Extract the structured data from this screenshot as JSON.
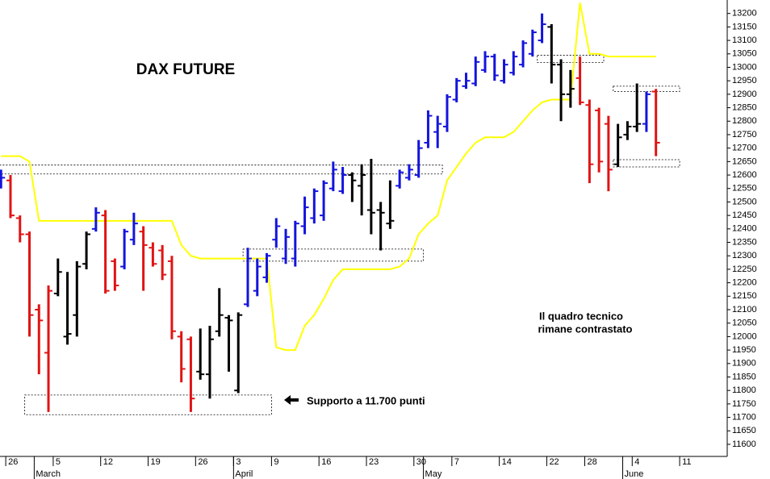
{
  "chart_data": {
    "type": "ohlc",
    "title": "DAX FUTURE",
    "annotations": [
      {
        "lines": [
          "Il quadro tecnico",
          "rimane contrastato"
        ]
      },
      {
        "lines": [
          "Supporto a 11.700 punti"
        ]
      }
    ],
    "categories": [
      null,
      "26",
      null,
      null,
      null,
      null,
      "5",
      null,
      null,
      null,
      null,
      "12",
      null,
      null,
      null,
      null,
      "19",
      null,
      null,
      null,
      null,
      "26",
      null,
      null,
      null,
      "3",
      null,
      null,
      null,
      "9",
      null,
      null,
      null,
      null,
      "16",
      null,
      null,
      null,
      null,
      "23",
      null,
      null,
      null,
      null,
      "30",
      null,
      null,
      null,
      "7",
      null,
      null,
      null,
      null,
      "14",
      null,
      null,
      null,
      null,
      "22",
      null,
      null,
      null,
      "28",
      null,
      null,
      null,
      null,
      "4",
      null,
      null,
      null,
      null,
      "11",
      null,
      null,
      null
    ],
    "months": [
      {
        "label": "March",
        "index": 4
      },
      {
        "label": "April",
        "index": 25
      },
      {
        "label": "May",
        "index": 45
      },
      {
        "label": "June",
        "index": 66
      }
    ],
    "open": [
      12560,
      12580,
      12440,
      12380,
      12100,
      11940,
      12160,
      12000,
      12080,
      12270,
      12400,
      12450,
      12280,
      12260,
      12360,
      12390,
      12330,
      12320,
      12280,
      12000,
      11990,
      11870,
      11860,
      12020,
      12070,
      11800,
      12120,
      12170,
      12220,
      12360,
      12290,
      12290,
      12410,
      12440,
      12450,
      12550,
      12540,
      12600,
      12560,
      12470,
      12470,
      12420,
      12560,
      12590,
      12600,
      12720,
      12760,
      12780,
      12880,
      12930,
      12940,
      12990,
      13040,
      12950,
      12980,
      13010,
      13050,
      13100,
      13150,
      13010,
      12900,
      12960,
      12860,
      12840,
      12790,
      12640,
      12750,
      12780,
      12790,
      12910,
      null,
      null,
      null,
      null,
      null,
      null
    ],
    "high": [
      12620,
      12600,
      12450,
      12390,
      12120,
      12190,
      12290,
      12240,
      12280,
      12390,
      12480,
      12470,
      12290,
      12400,
      12460,
      12410,
      12350,
      12340,
      12300,
      12020,
      12000,
      12030,
      12040,
      12180,
      12080,
      12090,
      12330,
      12290,
      12310,
      12440,
      12400,
      12430,
      12520,
      12550,
      12580,
      12650,
      12630,
      12610,
      12640,
      12660,
      12500,
      12580,
      12620,
      12640,
      12730,
      12840,
      12820,
      12900,
      12960,
      12980,
      13040,
      13060,
      13050,
      13030,
      13060,
      13100,
      13140,
      13200,
      13160,
      13030,
      12990,
      13040,
      12880,
      12850,
      12820,
      12790,
      12800,
      12940,
      12910,
      12920,
      null,
      null,
      null,
      null,
      null,
      null
    ],
    "low": [
      12550,
      12440,
      12350,
      12000,
      11860,
      11720,
      12150,
      11970,
      12000,
      12250,
      12390,
      12160,
      12170,
      12250,
      12340,
      12170,
      12260,
      12210,
      11990,
      11830,
      11720,
      11840,
      11770,
      12000,
      11870,
      11790,
      12110,
      12150,
      12200,
      12330,
      12270,
      12260,
      12380,
      12420,
      12430,
      12540,
      12530,
      12500,
      12450,
      12380,
      12320,
      12400,
      12550,
      12580,
      12590,
      12700,
      12700,
      12760,
      12870,
      12920,
      12930,
      12980,
      12950,
      12940,
      12970,
      13000,
      13040,
      13090,
      12940,
      12800,
      12850,
      12860,
      12570,
      12610,
      12540,
      12630,
      12730,
      12760,
      12760,
      12670,
      null,
      null,
      null,
      null,
      null,
      null
    ],
    "close": [
      12590,
      12450,
      12380,
      12080,
      12060,
      12170,
      12240,
      12010,
      12260,
      12380,
      12460,
      12170,
      12190,
      12390,
      12420,
      12340,
      12270,
      12230,
      12020,
      11880,
      11770,
      11860,
      11990,
      12080,
      12060,
      12080,
      12290,
      12260,
      12300,
      12410,
      12370,
      12420,
      12480,
      12540,
      12570,
      12620,
      12600,
      12580,
      12600,
      12460,
      12460,
      12430,
      12610,
      12620,
      12700,
      12820,
      12790,
      12890,
      12950,
      12950,
      13020,
      13040,
      12970,
      13010,
      13040,
      13090,
      13130,
      13160,
      13010,
      12900,
      12920,
      12870,
      12640,
      12650,
      12620,
      12740,
      12780,
      12790,
      12900,
      12720,
      null,
      null,
      null,
      null,
      null,
      null
    ],
    "bar_colors": [
      "#1414dc",
      "#e01414",
      "#e01414",
      "#e01414",
      "#e01414",
      "#e01414",
      "#000000",
      "#000000",
      "#000000",
      "#000000",
      "#1414dc",
      "#e01414",
      "#e01414",
      "#1414dc",
      "#1414dc",
      "#e01414",
      "#e01414",
      "#e01414",
      "#e01414",
      "#e01414",
      "#e01414",
      "#000000",
      "#000000",
      "#000000",
      "#000000",
      "#000000",
      "#1414dc",
      "#1414dc",
      "#1414dc",
      "#1414dc",
      "#1414dc",
      "#1414dc",
      "#1414dc",
      "#1414dc",
      "#1414dc",
      "#1414dc",
      "#1414dc",
      "#000000",
      "#000000",
      "#000000",
      "#000000",
      "#000000",
      "#1414dc",
      "#1414dc",
      "#1414dc",
      "#1414dc",
      "#1414dc",
      "#1414dc",
      "#1414dc",
      "#1414dc",
      "#1414dc",
      "#1414dc",
      "#1414dc",
      "#1414dc",
      "#1414dc",
      "#1414dc",
      "#1414dc",
      "#1414dc",
      "#000000",
      "#000000",
      "#000000",
      "#e01414",
      "#e01414",
      "#e01414",
      "#e01414",
      "#000000",
      "#000000",
      "#000000",
      "#1414dc",
      "#e01414",
      null,
      null,
      null,
      null,
      null,
      null
    ],
    "line": {
      "color": "#ffff00",
      "values": [
        12670,
        12670,
        12670,
        12650,
        12430,
        12430,
        12430,
        12430,
        12430,
        12430,
        12430,
        12430,
        12430,
        12430,
        12430,
        12430,
        12430,
        12430,
        12430,
        12340,
        12300,
        12290,
        12290,
        12290,
        12290,
        12290,
        12290,
        12290,
        12290,
        11960,
        11950,
        11950,
        12040,
        12080,
        12140,
        12210,
        12250,
        12250,
        12250,
        12250,
        12250,
        12250,
        12260,
        12290,
        12380,
        12420,
        12450,
        12580,
        12630,
        12680,
        12720,
        12740,
        12740,
        12740,
        12760,
        12800,
        12840,
        12870,
        12880,
        12880,
        12880,
        13240,
        13050,
        13050,
        13040,
        13040,
        13040,
        13040,
        13040,
        13040,
        null,
        null,
        null,
        null,
        null,
        null
      ]
    },
    "zones": [
      {
        "from": 0,
        "to": 46,
        "low": 12604,
        "high": 12637
      },
      {
        "from": 26,
        "to": 44,
        "low": 12280,
        "high": 12325
      },
      {
        "from": 3,
        "to": 28,
        "low": 11710,
        "high": 11783
      },
      {
        "from": 57,
        "to": 63,
        "low": 13018,
        "high": 13045
      },
      {
        "from": 65,
        "to": 71,
        "low": 12910,
        "high": 12930
      },
      {
        "from": 65,
        "to": 71,
        "low": 12630,
        "high": 12657
      }
    ],
    "ylim": [
      11555,
      13250
    ],
    "yticks": [
      11600,
      11650,
      11700,
      11750,
      11800,
      11850,
      11900,
      11950,
      12000,
      12050,
      12100,
      12150,
      12200,
      12250,
      12300,
      12350,
      12400,
      12450,
      12500,
      12550,
      12600,
      12650,
      12700,
      12750,
      12800,
      12850,
      12900,
      12950,
      13000,
      13050,
      13100,
      13150,
      13200
    ]
  }
}
